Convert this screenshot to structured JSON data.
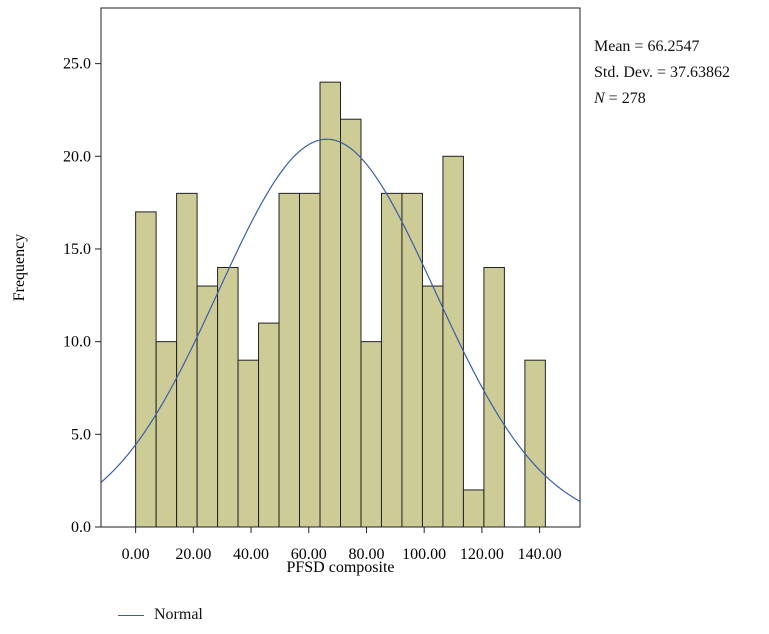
{
  "chart_data": {
    "type": "bar",
    "subtype": "histogram",
    "xlabel": "PFSD composite",
    "ylabel": "Frequency",
    "x_ticks": [
      "0.00",
      "20.00",
      "40.00",
      "60.00",
      "80.00",
      "100.00",
      "120.00",
      "140.00"
    ],
    "x_tick_values": [
      0,
      20,
      40,
      60,
      80,
      100,
      120,
      140
    ],
    "y_ticks": [
      "0.0",
      "5.0",
      "10.0",
      "15.0",
      "20.0",
      "25.0"
    ],
    "y_tick_values": [
      0,
      5,
      10,
      15,
      20,
      25
    ],
    "xlim": [
      -12,
      154
    ],
    "ylim": [
      0,
      28
    ],
    "bin_width": 7.1,
    "bins": [
      {
        "start": 0.0,
        "count": 17
      },
      {
        "start": 7.1,
        "count": 10
      },
      {
        "start": 14.2,
        "count": 18
      },
      {
        "start": 21.3,
        "count": 13
      },
      {
        "start": 28.4,
        "count": 14
      },
      {
        "start": 35.5,
        "count": 9
      },
      {
        "start": 42.6,
        "count": 11
      },
      {
        "start": 49.7,
        "count": 18
      },
      {
        "start": 56.8,
        "count": 18
      },
      {
        "start": 63.9,
        "count": 24
      },
      {
        "start": 71.0,
        "count": 22
      },
      {
        "start": 78.1,
        "count": 10
      },
      {
        "start": 85.2,
        "count": 18
      },
      {
        "start": 92.3,
        "count": 18
      },
      {
        "start": 99.4,
        "count": 13
      },
      {
        "start": 106.5,
        "count": 20
      },
      {
        "start": 113.6,
        "count": 2
      },
      {
        "start": 120.7,
        "count": 14
      },
      {
        "start": 134.9,
        "count": 9
      }
    ],
    "bar_color": "#cdcb96",
    "bar_edge_color": "#222222",
    "curve": {
      "name": "Normal",
      "mean": 66.2547,
      "sd": 37.63862,
      "n": 278,
      "color": "#3a5fa8"
    },
    "grid": false
  },
  "stats": {
    "mean_label": "Mean = 66.2547",
    "sd_label": "Std. Dev. = 37.63862",
    "n_label": "N",
    "n_value": " = 278"
  },
  "legend": {
    "normal_label": "Normal"
  }
}
